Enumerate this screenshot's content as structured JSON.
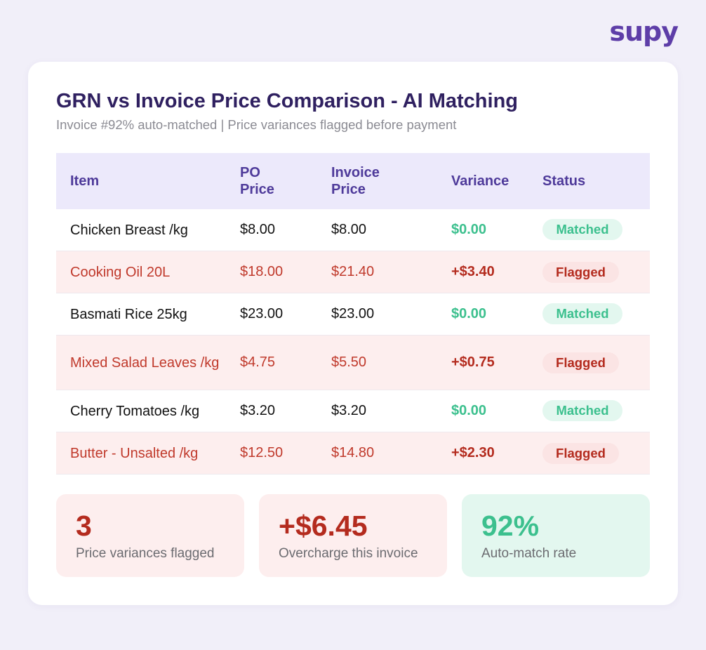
{
  "brand": {
    "logo_text": "supy"
  },
  "header": {
    "title": "GRN vs Invoice Price Comparison - AI Matching",
    "subtitle": "Invoice #92% auto-matched | Price variances flagged before payment"
  },
  "table": {
    "columns": [
      "Item",
      "PO Price",
      "Invoice Price",
      "Variance",
      "Status"
    ],
    "rows": [
      {
        "item": "Chicken Breast /kg",
        "po_price": "$8.00",
        "invoice_price": "$8.00",
        "variance": "$0.00",
        "status": "Matched"
      },
      {
        "item": "Cooking Oil 20L",
        "po_price": "$18.00",
        "invoice_price": "$21.40",
        "variance": "+$3.40",
        "status": "Flagged"
      },
      {
        "item": "Basmati Rice 25kg",
        "po_price": "$23.00",
        "invoice_price": "$23.00",
        "variance": "$0.00",
        "status": "Matched"
      },
      {
        "item": "Mixed Salad Leaves /kg",
        "po_price": "$4.75",
        "invoice_price": "$5.50",
        "variance": "+$0.75",
        "status": "Flagged"
      },
      {
        "item": "Cherry Tomatoes /kg",
        "po_price": "$3.20",
        "invoice_price": "$3.20",
        "variance": "$0.00",
        "status": "Matched"
      },
      {
        "item": "Butter - Unsalted /kg",
        "po_price": "$12.50",
        "invoice_price": "$14.80",
        "variance": "+$2.30",
        "status": "Flagged"
      }
    ]
  },
  "summary": [
    {
      "value": "3",
      "label": "Price variances flagged",
      "tone": "red"
    },
    {
      "value": "+$6.45",
      "label": "Overcharge this invoice",
      "tone": "red"
    },
    {
      "value": "92%",
      "label": "Auto-match rate",
      "tone": "green"
    }
  ],
  "colors": {
    "brand": "#5e3ea8",
    "title": "#2f2060",
    "matched": "#3cc08e",
    "flagged": "#b42b1e",
    "header_bg": "#ece9fb"
  }
}
